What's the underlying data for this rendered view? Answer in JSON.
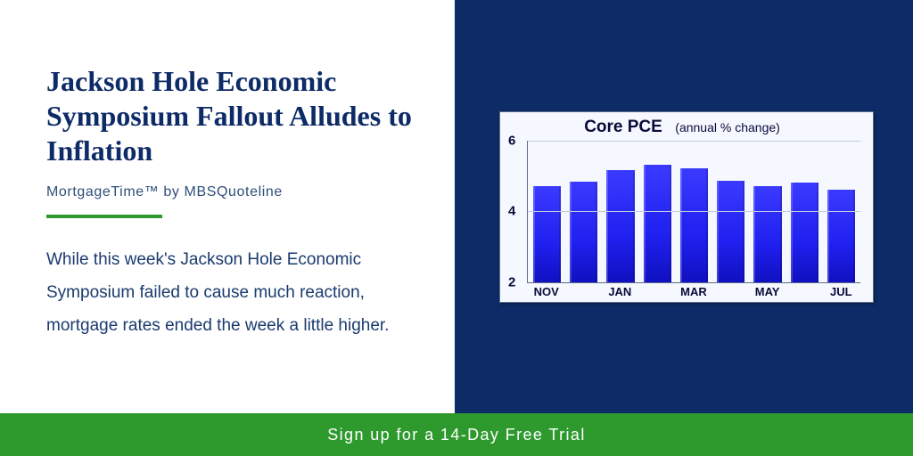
{
  "left": {
    "headline": "Jackson Hole Economic Symposium Fallout Alludes to Inflation",
    "subtitle": "MortgageTime™ by MBSQuoteline",
    "body": "While this week's Jackson Hole Economic Symposium failed to cause much reaction, mortgage rates  ended the week a little higher."
  },
  "chart": {
    "type": "bar",
    "title_main": "Core PCE",
    "title_sub": "(annual % change)",
    "ymin": 2,
    "ymax": 6,
    "yticks": [
      2,
      4,
      6
    ],
    "grid_color": "#c3cde0",
    "axis_color": "#5b6d8c",
    "background_color": "#f5f8fe",
    "bar_color": "#2020f0",
    "categories": [
      "NOV",
      "",
      "JAN",
      "",
      "MAR",
      "",
      "MAY",
      "",
      "JUL"
    ],
    "values": [
      4.7,
      4.82,
      5.15,
      5.32,
      5.2,
      4.86,
      4.7,
      4.8,
      4.6
    ]
  },
  "cta": {
    "label": "Sign up for a 14-Day Free Trial"
  },
  "colors": {
    "navy": "#0d2b66",
    "green": "#2e9a2e",
    "text_blue": "#1a3a6e"
  }
}
